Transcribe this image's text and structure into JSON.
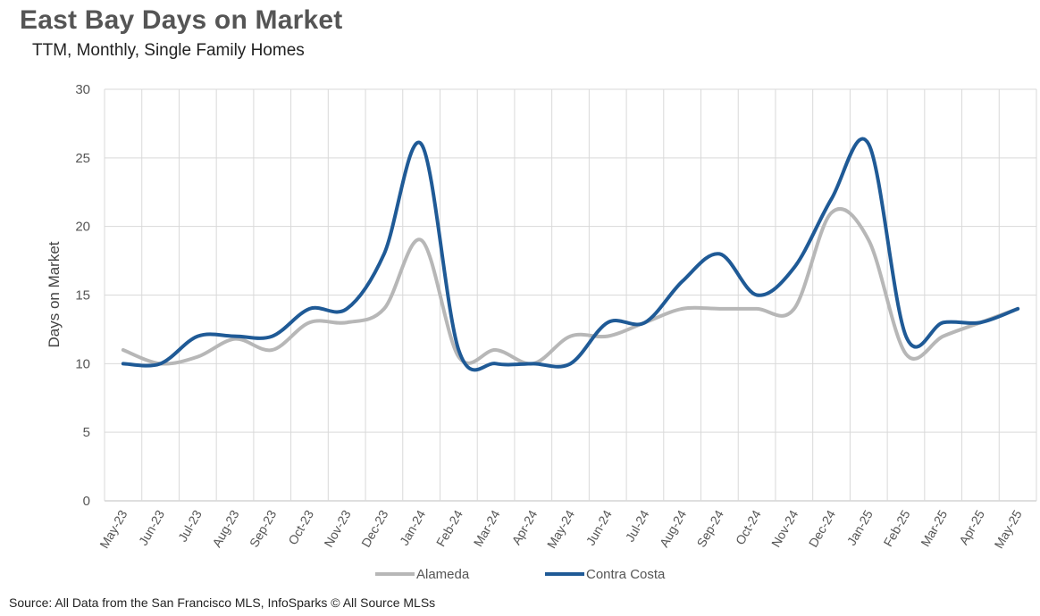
{
  "chart_data": {
    "type": "line",
    "title": "East Bay Days on Market",
    "subtitle": "TTM, Monthly, Single Family Homes",
    "ylabel": "Days on Market",
    "xlabel": "",
    "ylim": [
      0,
      30
    ],
    "yticks": [
      0,
      5,
      10,
      15,
      20,
      25,
      30
    ],
    "grid": true,
    "legend": "bottom",
    "categories": [
      "May-23",
      "Jun-23",
      "Jul-23",
      "Aug-23",
      "Sep-23",
      "Oct-23",
      "Nov-23",
      "Dec-23",
      "Jan-24",
      "Feb-24",
      "Mar-24",
      "Apr-24",
      "May-24",
      "Jun-24",
      "Jul-24",
      "Aug-24",
      "Sep-24",
      "Oct-24",
      "Nov-24",
      "Dec-24",
      "Jan-25",
      "Feb-25",
      "Mar-25",
      "Apr-25",
      "May-25"
    ],
    "series": [
      {
        "name": "Alameda",
        "color": "#b7b7b7",
        "values": [
          11,
          10,
          10.5,
          11.8,
          11,
          13,
          13,
          14,
          19,
          10.5,
          11,
          10,
          12,
          12,
          13,
          14,
          14,
          14,
          14,
          21,
          19,
          10.7,
          12,
          13,
          14
        ]
      },
      {
        "name": "Contra Costa",
        "color": "#1f5a96",
        "values": [
          10,
          10,
          12,
          12,
          12,
          14,
          14,
          18,
          26,
          11,
          10,
          10,
          10,
          13,
          13,
          16,
          18,
          15,
          17,
          22,
          26,
          12,
          13,
          13,
          14
        ]
      }
    ]
  },
  "source": "Source: All Data from the San Francisco MLS, InfoSparks © All Source MLSs"
}
